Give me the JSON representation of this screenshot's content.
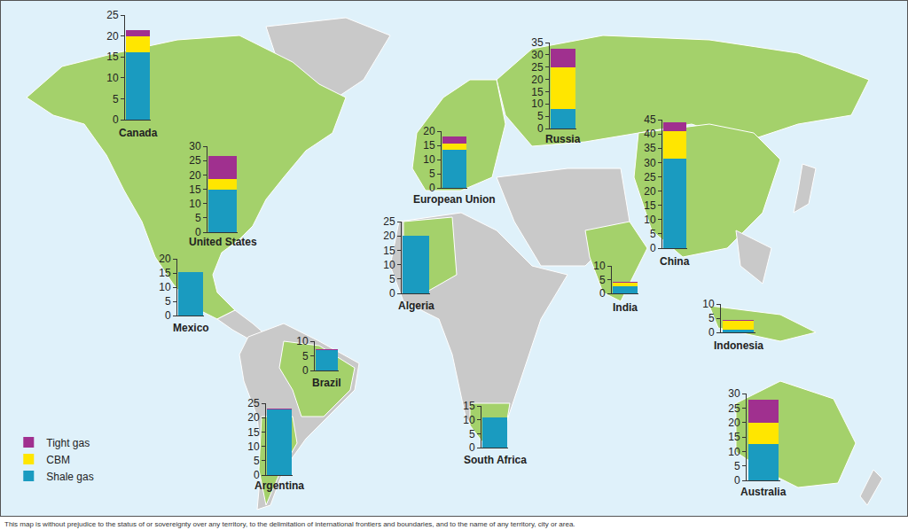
{
  "chart_data": [
    {
      "type": "bar",
      "title": "Canada",
      "stacked": true,
      "categories": [
        null
      ],
      "ylim": [
        0,
        25
      ],
      "yticks": [
        0,
        5,
        10,
        15,
        20,
        25
      ],
      "grid": false,
      "tick_labels": "y",
      "legend": "bottom left",
      "series": [
        {
          "name": "Shale gas",
          "color": "#1a9bc0",
          "values": [
            16
          ]
        },
        {
          "name": "CBM",
          "color": "#ffe600",
          "values": [
            4
          ]
        },
        {
          "name": "Tight gas",
          "color": "#a0308f",
          "values": [
            1.5
          ]
        }
      ]
    },
    {
      "type": "bar",
      "title": "United States",
      "stacked": true,
      "categories": [
        null
      ],
      "ylim": [
        0,
        30
      ],
      "yticks": [
        0,
        5,
        10,
        15,
        20,
        25,
        30
      ],
      "grid": false,
      "tick_labels": "y",
      "series": [
        {
          "name": "Shale gas",
          "color": "#1a9bc0",
          "values": [
            15
          ]
        },
        {
          "name": "CBM",
          "color": "#ffe600",
          "values": [
            3.5
          ]
        },
        {
          "name": "Tight gas",
          "color": "#a0308f",
          "values": [
            8
          ]
        }
      ]
    },
    {
      "type": "bar",
      "title": "Mexico",
      "stacked": true,
      "categories": [
        null
      ],
      "ylim": [
        0,
        20
      ],
      "yticks": [
        0,
        5,
        10,
        15,
        20
      ],
      "grid": false,
      "tick_labels": "y",
      "series": [
        {
          "name": "Shale gas",
          "color": "#1a9bc0",
          "values": [
            15.4
          ]
        },
        {
          "name": "CBM",
          "color": "#ffe600",
          "values": [
            0
          ]
        },
        {
          "name": "Tight gas",
          "color": "#a0308f",
          "values": [
            0
          ]
        }
      ]
    },
    {
      "type": "bar",
      "title": "Brazil",
      "stacked": true,
      "categories": [
        null
      ],
      "ylim": [
        0,
        10
      ],
      "yticks": [
        0,
        5,
        10
      ],
      "grid": false,
      "tick_labels": "y",
      "series": [
        {
          "name": "Shale gas",
          "color": "#1a9bc0",
          "values": [
            6.9
          ]
        },
        {
          "name": "CBM",
          "color": "#ffe600",
          "values": [
            0
          ]
        },
        {
          "name": "Tight gas",
          "color": "#a0308f",
          "values": [
            0.5
          ]
        }
      ]
    },
    {
      "type": "bar",
      "title": "Argentina",
      "stacked": true,
      "categories": [
        null
      ],
      "ylim": [
        0,
        25
      ],
      "yticks": [
        0,
        5,
        10,
        15,
        20,
        25
      ],
      "grid": false,
      "tick_labels": "y",
      "series": [
        {
          "name": "Shale gas",
          "color": "#1a9bc0",
          "values": [
            22.7
          ]
        },
        {
          "name": "CBM",
          "color": "#ffe600",
          "values": [
            0
          ]
        },
        {
          "name": "Tight gas",
          "color": "#a0308f",
          "values": [
            0.3
          ]
        }
      ]
    },
    {
      "type": "bar",
      "title": "European Union",
      "stacked": true,
      "categories": [
        null
      ],
      "ylim": [
        0,
        20
      ],
      "yticks": [
        0,
        5,
        10,
        15,
        20
      ],
      "grid": false,
      "tick_labels": "y",
      "series": [
        {
          "name": "Shale gas",
          "color": "#1a9bc0",
          "values": [
            13.5
          ]
        },
        {
          "name": "CBM",
          "color": "#ffe600",
          "values": [
            2
          ]
        },
        {
          "name": "Tight gas",
          "color": "#a0308f",
          "values": [
            2.5
          ]
        }
      ]
    },
    {
      "type": "bar",
      "title": "Algeria",
      "stacked": true,
      "categories": [
        null
      ],
      "ylim": [
        0,
        25
      ],
      "yticks": [
        0,
        5,
        10,
        15,
        20,
        25
      ],
      "grid": false,
      "tick_labels": "y",
      "series": [
        {
          "name": "Shale gas",
          "color": "#1a9bc0",
          "values": [
            20
          ]
        },
        {
          "name": "CBM",
          "color": "#ffe600",
          "values": [
            0
          ]
        },
        {
          "name": "Tight gas",
          "color": "#a0308f",
          "values": [
            0.2
          ]
        }
      ]
    },
    {
      "type": "bar",
      "title": "South Africa",
      "stacked": true,
      "categories": [
        null
      ],
      "ylim": [
        0,
        15
      ],
      "yticks": [
        0,
        5,
        10,
        15
      ],
      "grid": false,
      "tick_labels": "y",
      "series": [
        {
          "name": "Shale gas",
          "color": "#1a9bc0",
          "values": [
            11
          ]
        },
        {
          "name": "CBM",
          "color": "#ffe600",
          "values": [
            0
          ]
        },
        {
          "name": "Tight gas",
          "color": "#a0308f",
          "values": [
            0
          ]
        }
      ]
    },
    {
      "type": "bar",
      "title": "Russia",
      "stacked": true,
      "categories": [
        null
      ],
      "ylim": [
        0,
        35
      ],
      "yticks": [
        0,
        5,
        10,
        15,
        20,
        25,
        30,
        35
      ],
      "grid": false,
      "tick_labels": "y",
      "series": [
        {
          "name": "Shale gas",
          "color": "#1a9bc0",
          "values": [
            8
          ]
        },
        {
          "name": "CBM",
          "color": "#ffe600",
          "values": [
            17
          ]
        },
        {
          "name": "Tight gas",
          "color": "#a0308f",
          "values": [
            7.5
          ]
        }
      ]
    },
    {
      "type": "bar",
      "title": "India",
      "stacked": true,
      "categories": [
        null
      ],
      "ylim": [
        0,
        10
      ],
      "yticks": [
        0,
        5,
        10
      ],
      "grid": false,
      "tick_labels": "y",
      "series": [
        {
          "name": "Shale gas",
          "color": "#1a9bc0",
          "values": [
            2.5
          ]
        },
        {
          "name": "CBM",
          "color": "#ffe600",
          "values": [
            1.5
          ]
        },
        {
          "name": "Tight gas",
          "color": "#a0308f",
          "values": [
            0.3
          ]
        }
      ]
    },
    {
      "type": "bar",
      "title": "China",
      "stacked": true,
      "categories": [
        null
      ],
      "ylim": [
        0,
        45
      ],
      "yticks": [
        0,
        5,
        10,
        15,
        20,
        25,
        30,
        35,
        40,
        45
      ],
      "grid": false,
      "tick_labels": "y",
      "series": [
        {
          "name": "Shale gas",
          "color": "#1a9bc0",
          "values": [
            31.5
          ]
        },
        {
          "name": "CBM",
          "color": "#ffe600",
          "values": [
            9.5
          ]
        },
        {
          "name": "Tight gas",
          "color": "#a0308f",
          "values": [
            3
          ]
        }
      ]
    },
    {
      "type": "bar",
      "title": "Indonesia",
      "stacked": true,
      "categories": [
        null
      ],
      "ylim": [
        0,
        10
      ],
      "yticks": [
        0,
        5,
        10
      ],
      "grid": false,
      "tick_labels": "y",
      "series": [
        {
          "name": "Shale gas",
          "color": "#1a9bc0",
          "values": [
            1
          ]
        },
        {
          "name": "CBM",
          "color": "#ffe600",
          "values": [
            3
          ]
        },
        {
          "name": "Tight gas",
          "color": "#a0308f",
          "values": [
            0.5
          ]
        }
      ]
    },
    {
      "type": "bar",
      "title": "Australia",
      "stacked": true,
      "categories": [
        null
      ],
      "ylim": [
        0,
        30
      ],
      "yticks": [
        0,
        5,
        10,
        15,
        20,
        25,
        30
      ],
      "grid": false,
      "tick_labels": "y",
      "series": [
        {
          "name": "Shale gas",
          "color": "#1a9bc0",
          "values": [
            12.5
          ]
        },
        {
          "name": "CBM",
          "color": "#ffe600",
          "values": [
            7.5
          ]
        },
        {
          "name": "Tight gas",
          "color": "#a0308f",
          "values": [
            8
          ]
        }
      ]
    }
  ],
  "note": "This map is without prejudice to the status of or sovereignty over any territory, to the delimitation of international frontiers and boundaries, and to the name of any territory, city or area."
}
